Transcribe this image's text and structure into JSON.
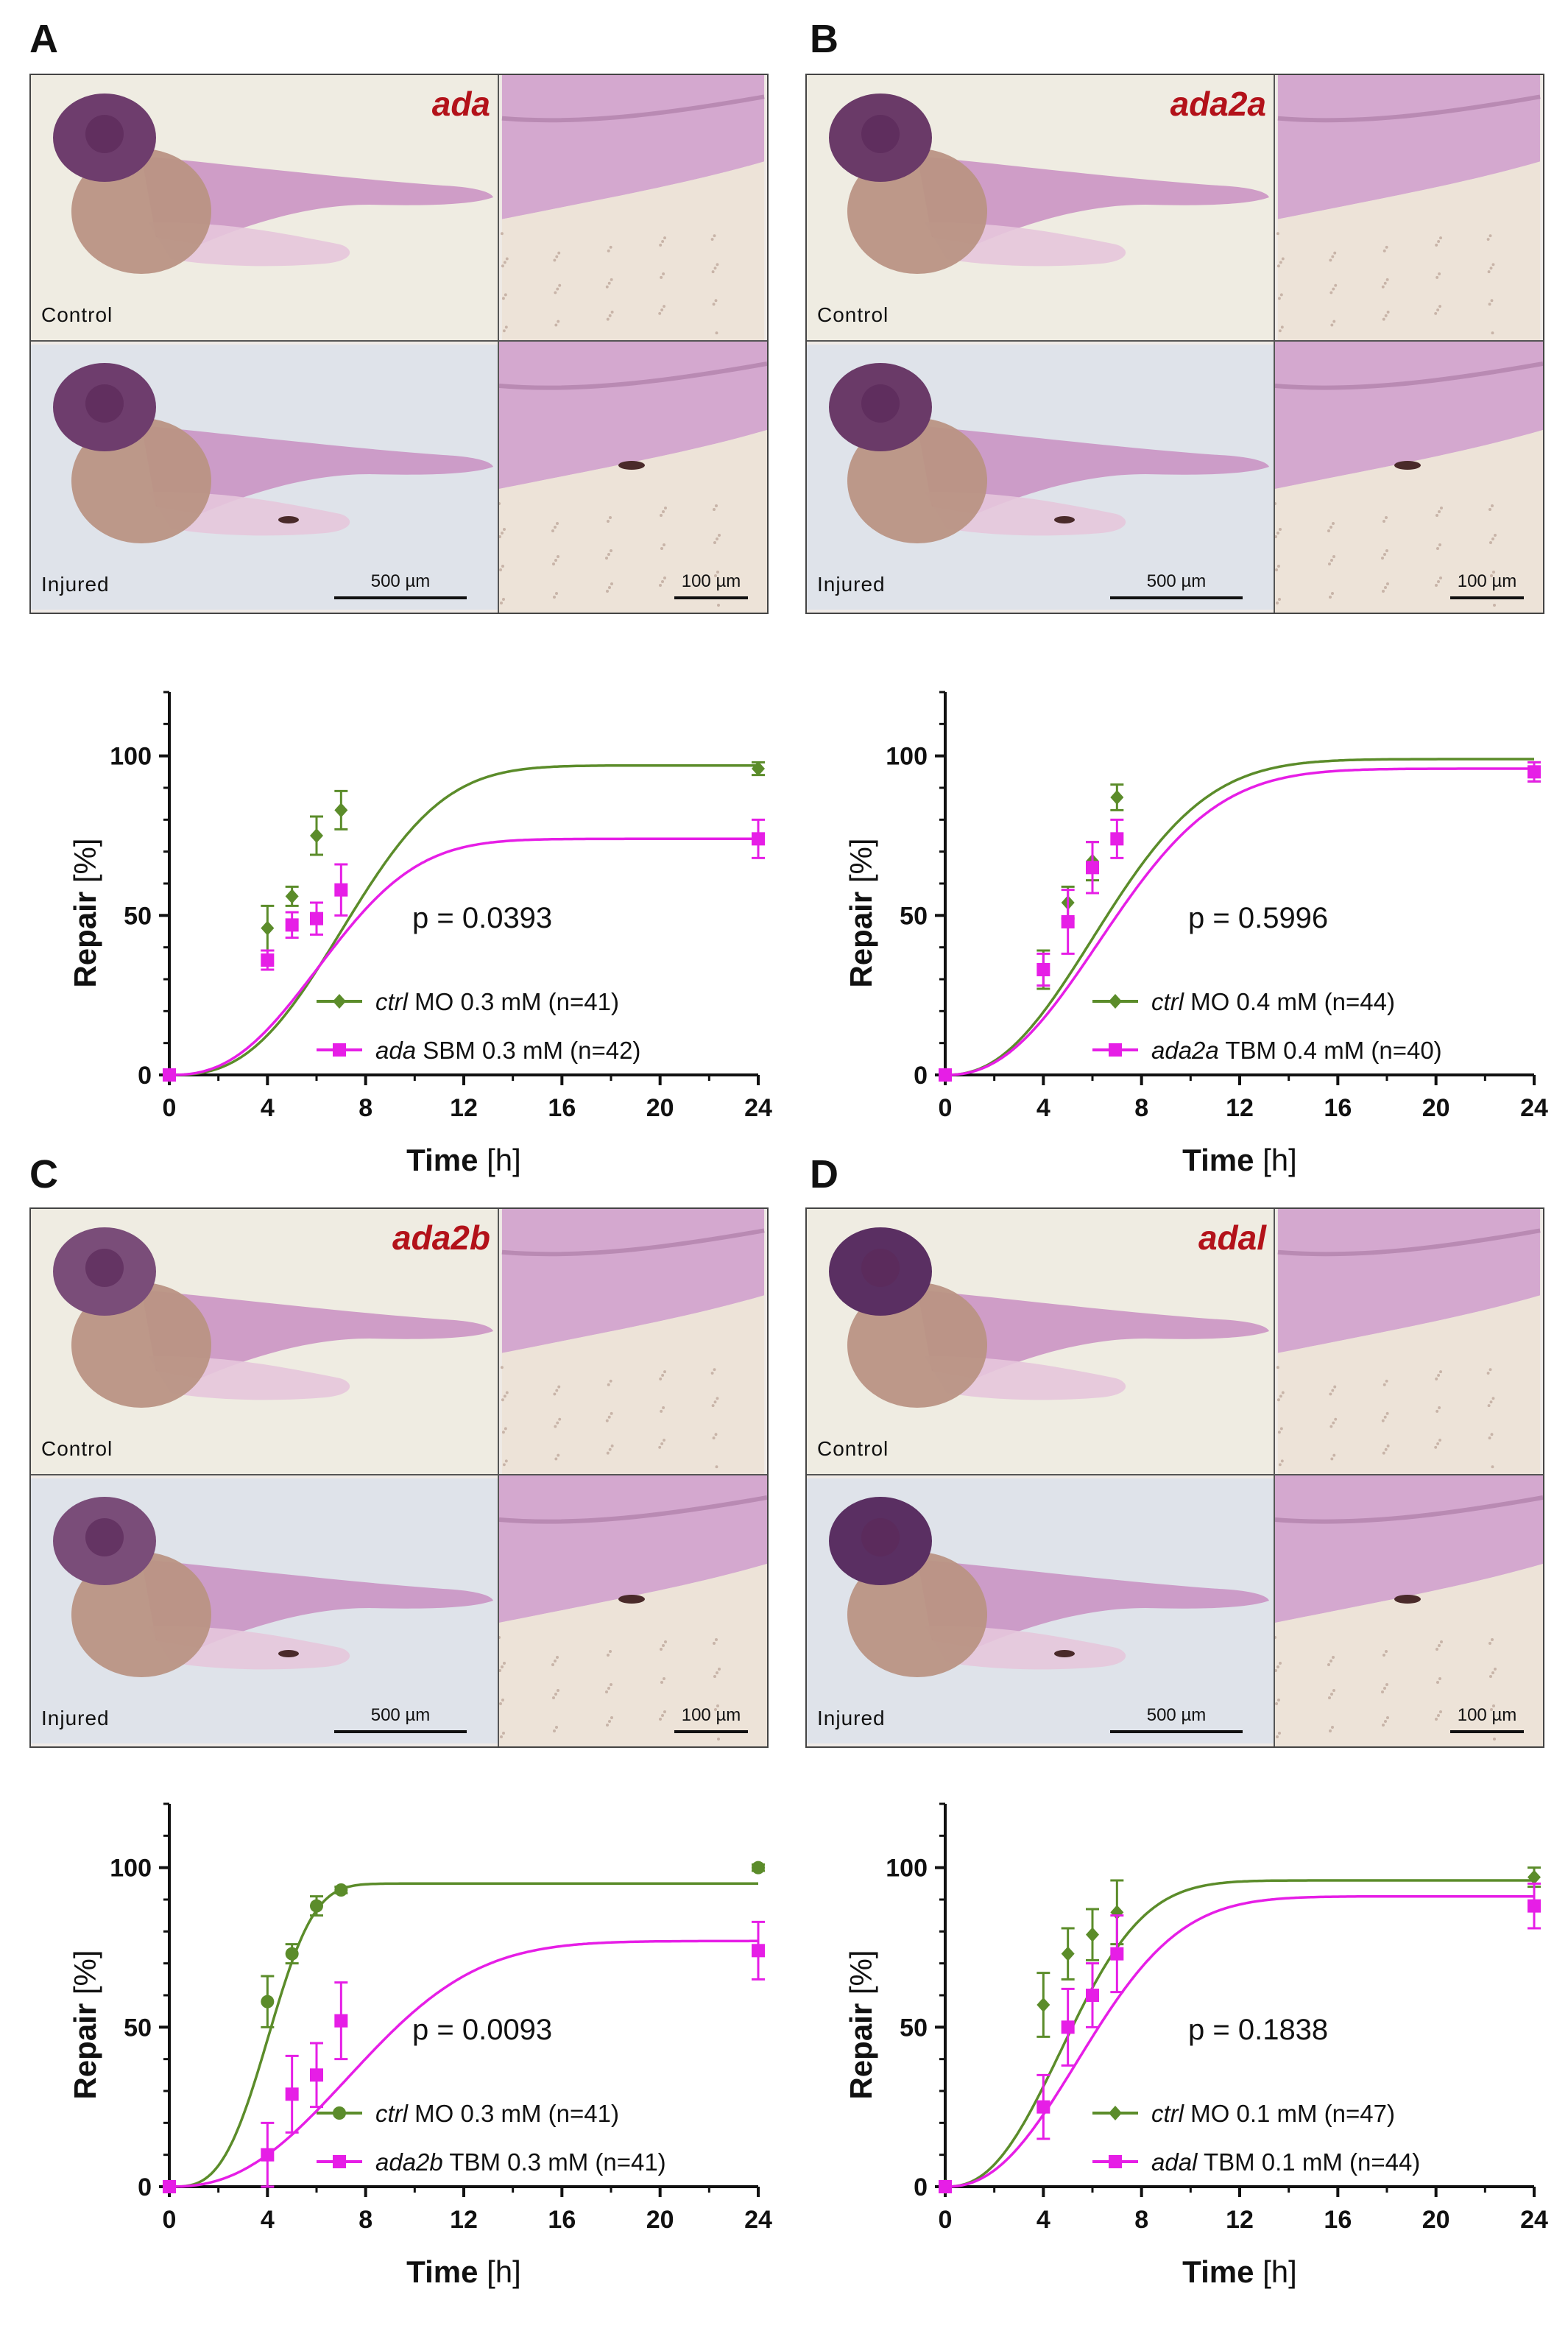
{
  "panels": [
    {
      "letter": "A",
      "gene": "ada",
      "control_label": "Control",
      "injured_label": "Injured",
      "scale_large": "500 µm",
      "scale_small": "100 µm"
    },
    {
      "letter": "B",
      "gene": "ada2a",
      "control_label": "Control",
      "injured_label": "Injured",
      "scale_large": "500 µm",
      "scale_small": "100 µm"
    },
    {
      "letter": "C",
      "gene": "ada2b",
      "control_label": "Control",
      "injured_label": "Injured",
      "scale_large": "500 µm",
      "scale_small": "100 µm"
    },
    {
      "letter": "D",
      "gene": "adal",
      "control_label": "Control",
      "injured_label": "Injured",
      "scale_large": "500 µm",
      "scale_small": "100 µm"
    }
  ],
  "colors": {
    "green": "#5b8c2a",
    "magenta": "#e61ee6",
    "gene_red": "#b3121a"
  },
  "chart_data": [
    {
      "type": "line",
      "panel": "A",
      "xlabel": "Time",
      "xunit": "[h]",
      "ylabel": "Repair",
      "yunit": "[%]",
      "xlim": [
        0,
        24
      ],
      "ylim": [
        0,
        120
      ],
      "x_ticks": [
        "0",
        "4",
        "8",
        "12",
        "16",
        "20",
        "24"
      ],
      "y_ticks": [
        "0",
        "50",
        "100"
      ],
      "p_value": "p = 0.0393",
      "series": [
        {
          "name": "ctrl",
          "label_rest": "MO 0.3 mM (n=41)",
          "color": "#5b8c2a",
          "marker": "diamond",
          "x": [
            0,
            4,
            5,
            6,
            7,
            24
          ],
          "y": [
            0,
            46,
            56,
            75,
            83,
            96
          ],
          "err": [
            0,
            7,
            3,
            6,
            6,
            2
          ],
          "fit": {
            "ymax": 97,
            "k": 0.12,
            "n": 2.7
          }
        },
        {
          "name": "ada",
          "label_rest": "SBM 0.3 mM (n=42)",
          "color": "#e61ee6",
          "marker": "square",
          "x": [
            0,
            4,
            5,
            6,
            7,
            24
          ],
          "y": [
            0,
            36,
            47,
            49,
            58,
            74
          ],
          "err": [
            0,
            3,
            4,
            5,
            8,
            6
          ],
          "fit": {
            "ymax": 74,
            "k": 0.135,
            "n": 2.5
          }
        }
      ]
    },
    {
      "type": "line",
      "panel": "B",
      "xlabel": "Time",
      "xunit": "[h]",
      "ylabel": "Repair",
      "yunit": "[%]",
      "xlim": [
        0,
        24
      ],
      "ylim": [
        0,
        120
      ],
      "x_ticks": [
        "0",
        "4",
        "8",
        "12",
        "16",
        "20",
        "24"
      ],
      "y_ticks": [
        "0",
        "50",
        "100"
      ],
      "p_value": "p = 0.5996",
      "series": [
        {
          "name": "ctrl",
          "label_rest": "MO 0.4 mM (n=44)",
          "color": "#5b8c2a",
          "marker": "diamond",
          "x": [
            0,
            4,
            5,
            6,
            7,
            24
          ],
          "y": [
            0,
            33,
            54,
            67,
            87,
            95
          ],
          "err": [
            0,
            6,
            5,
            6,
            4,
            3
          ],
          "fit": {
            "ymax": 99,
            "k": 0.13,
            "n": 2.3
          }
        },
        {
          "name": "ada2a",
          "label_rest": "TBM 0.4 mM (n=40)",
          "color": "#e61ee6",
          "marker": "square",
          "x": [
            0,
            4,
            5,
            6,
            7,
            24
          ],
          "y": [
            0,
            33,
            48,
            65,
            74,
            95
          ],
          "err": [
            0,
            5,
            10,
            8,
            6,
            3
          ],
          "fit": {
            "ymax": 96,
            "k": 0.125,
            "n": 2.3
          }
        }
      ]
    },
    {
      "type": "line",
      "panel": "C",
      "xlabel": "Time",
      "xunit": "[h]",
      "ylabel": "Repair",
      "yunit": "[%]",
      "xlim": [
        0,
        24
      ],
      "ylim": [
        0,
        120
      ],
      "x_ticks": [
        "0",
        "4",
        "8",
        "12",
        "16",
        "20",
        "24"
      ],
      "y_ticks": [
        "0",
        "50",
        "100"
      ],
      "p_value": "p = 0.0093",
      "series": [
        {
          "name": "ctrl",
          "label_rest": "MO 0.3 mM (n=41)",
          "color": "#5b8c2a",
          "marker": "circle",
          "x": [
            0,
            4,
            5,
            6,
            7,
            24
          ],
          "y": [
            0,
            58,
            73,
            88,
            93,
            100
          ],
          "err": [
            0,
            8,
            3,
            3,
            1,
            1
          ],
          "fit": {
            "ymax": 95,
            "k": 0.22,
            "n": 3.2
          }
        },
        {
          "name": "ada2b",
          "label_rest": "TBM 0.3 mM (n=41)",
          "color": "#e61ee6",
          "marker": "square",
          "x": [
            0,
            4,
            5,
            6,
            7,
            24
          ],
          "y": [
            0,
            10,
            29,
            35,
            52,
            74
          ],
          "err": [
            0,
            10,
            12,
            10,
            12,
            9
          ],
          "fit": {
            "ymax": 77,
            "k": 0.11,
            "n": 2.4
          }
        }
      ]
    },
    {
      "type": "line",
      "panel": "D",
      "xlabel": "Time",
      "xunit": "[h]",
      "ylabel": "Repair",
      "yunit": "[%]",
      "xlim": [
        0,
        24
      ],
      "ylim": [
        0,
        120
      ],
      "x_ticks": [
        "0",
        "4",
        "8",
        "12",
        "16",
        "20",
        "24"
      ],
      "y_ticks": [
        "0",
        "50",
        "100"
      ],
      "p_value": "p = 0.1838",
      "series": [
        {
          "name": "ctrl",
          "label_rest": "MO 0.1 mM (n=47)",
          "color": "#5b8c2a",
          "marker": "diamond",
          "x": [
            0,
            4,
            5,
            6,
            7,
            24
          ],
          "y": [
            0,
            57,
            73,
            79,
            86,
            97
          ],
          "err": [
            0,
            10,
            8,
            8,
            10,
            3
          ],
          "fit": {
            "ymax": 96,
            "k": 0.17,
            "n": 2.4
          }
        },
        {
          "name": "adal",
          "label_rest": "TBM 0.1 mM (n=44)",
          "color": "#e61ee6",
          "marker": "square",
          "x": [
            0,
            4,
            5,
            6,
            7,
            24
          ],
          "y": [
            0,
            25,
            50,
            60,
            73,
            88
          ],
          "err": [
            0,
            10,
            12,
            10,
            12,
            7
          ],
          "fit": {
            "ymax": 91,
            "k": 0.145,
            "n": 2.3
          }
        }
      ]
    }
  ]
}
